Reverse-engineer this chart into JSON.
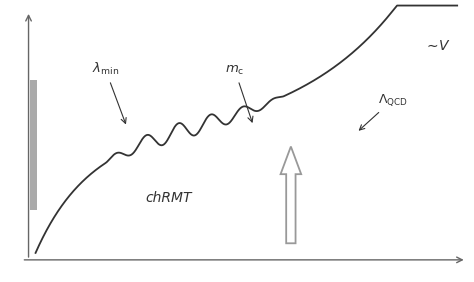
{
  "background_color": "#ffffff",
  "fig_width": 4.74,
  "fig_height": 2.82,
  "dpi": 100,
  "main_curve_color": "#333333",
  "axis_color": "#666666",
  "text_color": "#333333",
  "arrow_color": "#999999",
  "label_lambda_min": "$\\lambda_{\\mathrm{min}}$",
  "label_mc": "$m_{\\mathrm{c}}$",
  "label_Lambda_QCD": "$\\Lambda_{\\mathrm{QCD}}$",
  "label_simV": "$\\sim\\! V$",
  "label_chRMT": "chRMT"
}
